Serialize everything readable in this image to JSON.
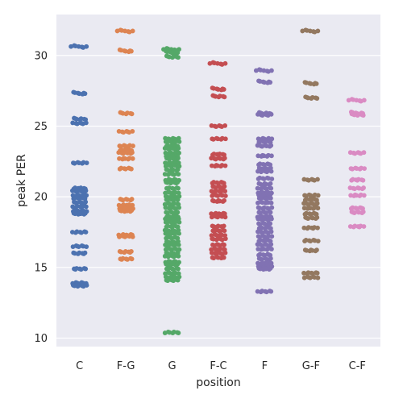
{
  "chart_data": {
    "type": "scatter",
    "style": "seaborn-stripplot",
    "xlabel": "position",
    "ylabel": "peak PER",
    "ylim": [
      9.4,
      32.9
    ],
    "yticks": [
      10,
      15,
      20,
      25,
      30
    ],
    "grid": true,
    "legend": "none",
    "categories": [
      {
        "name": "C",
        "color": "#4c72b0",
        "values": [
          30.6,
          27.3,
          25.5,
          25.2,
          22.4,
          20.6,
          20.4,
          20.1,
          19.9,
          19.6,
          19.3,
          19.0,
          18.8,
          17.5,
          16.5,
          16.0,
          14.9,
          13.9,
          13.7
        ]
      },
      {
        "name": "F-G",
        "color": "#dd8452",
        "values": [
          31.7,
          30.3,
          25.9,
          24.6,
          23.6,
          23.3,
          23.1,
          22.7,
          22.0,
          19.8,
          19.4,
          19.2,
          19.0,
          17.3,
          17.2,
          16.1,
          15.6
        ]
      },
      {
        "name": "G",
        "color": "#55a868",
        "values": [
          30.4,
          30.2,
          29.9,
          24.1,
          23.9,
          23.6,
          23.4,
          23.1,
          22.9,
          22.7,
          22.4,
          22.2,
          21.9,
          21.6,
          21.2,
          21.0,
          20.6,
          20.3,
          20.0,
          19.8,
          19.5,
          19.2,
          18.9,
          18.6,
          18.4,
          18.2,
          17.9,
          17.6,
          17.4,
          17.1,
          16.8,
          16.6,
          16.3,
          16.0,
          15.8,
          15.4,
          15.2,
          14.9,
          14.6,
          14.3,
          14.1,
          10.4
        ]
      },
      {
        "name": "F-C",
        "color": "#c44e52",
        "values": [
          29.4,
          27.6,
          27.1,
          25.0,
          24.1,
          23.0,
          22.7,
          22.2,
          21.0,
          20.7,
          20.4,
          20.1,
          19.7,
          18.8,
          18.6,
          17.9,
          17.6,
          17.3,
          17.0,
          16.6,
          16.3,
          16.0,
          15.7
        ]
      },
      {
        "name": "F",
        "color": "#8172b3",
        "values": [
          28.9,
          28.1,
          25.9,
          25.8,
          24.1,
          23.9,
          23.6,
          22.9,
          22.3,
          22.0,
          21.8,
          21.3,
          20.9,
          20.6,
          20.3,
          20.1,
          19.9,
          19.6,
          19.2,
          18.9,
          18.6,
          18.4,
          18.1,
          17.8,
          17.5,
          17.2,
          16.9,
          16.6,
          16.3,
          15.9,
          15.6,
          15.3,
          15.1,
          14.9,
          13.3
        ]
      },
      {
        "name": "G-F",
        "color": "#937860",
        "values": [
          31.7,
          28.0,
          27.0,
          21.2,
          20.1,
          19.8,
          19.5,
          19.2,
          18.8,
          18.5,
          17.8,
          16.9,
          16.2,
          14.6,
          14.3
        ]
      },
      {
        "name": "C-F",
        "color": "#da8bc3",
        "values": [
          26.8,
          25.9,
          25.8,
          23.1,
          22.0,
          21.2,
          20.6,
          20.1,
          19.2,
          18.9,
          17.9
        ]
      }
    ]
  }
}
